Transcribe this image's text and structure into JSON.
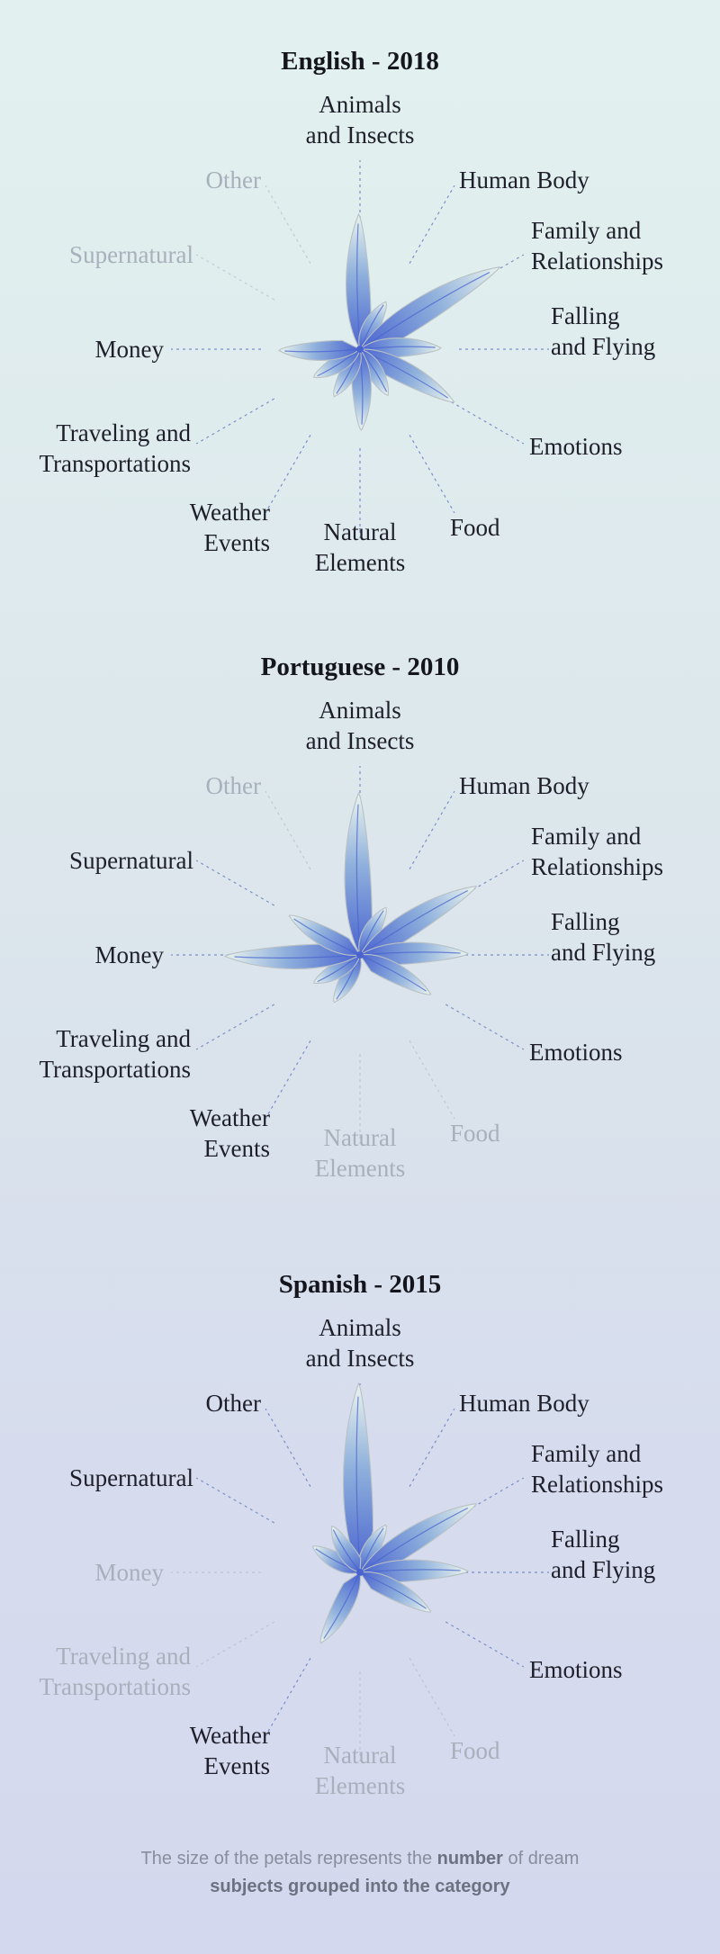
{
  "chart_data": [
    {
      "type": "radial-petal",
      "title": "English - 2018",
      "categories": [
        "Animals and Insects",
        "Human Body",
        "Family and Relationships",
        "Falling and Flying",
        "Emotions",
        "Food",
        "Natural Elements",
        "Weather Events",
        "Traveling and Transportations",
        "Money",
        "Supernatural",
        "Other"
      ],
      "values": [
        5,
        2,
        6,
        3,
        4,
        2,
        3,
        2,
        2,
        3,
        0,
        0
      ]
    },
    {
      "type": "radial-petal",
      "title": "Portuguese - 2010",
      "categories": [
        "Animals and Insects",
        "Human Body",
        "Family and Relationships",
        "Falling and Flying",
        "Emotions",
        "Food",
        "Natural Elements",
        "Weather Events",
        "Traveling and Transportations",
        "Money",
        "Supernatural",
        "Other"
      ],
      "values": [
        6,
        2,
        5,
        4,
        3,
        0,
        0,
        2,
        2,
        5,
        3,
        0
      ]
    },
    {
      "type": "radial-petal",
      "title": "Spanish - 2015",
      "categories": [
        "Animals and Insects",
        "Human Body",
        "Family and Relationships",
        "Falling and Flying",
        "Emotions",
        "Food",
        "Natural Elements",
        "Weather Events",
        "Traveling and Transportations",
        "Money",
        "Supernatural",
        "Other"
      ],
      "values": [
        7,
        2,
        5,
        4,
        3,
        0,
        0,
        3,
        0,
        0,
        2,
        2
      ]
    }
  ],
  "labels": [
    [
      "Animals",
      "and Insects"
    ],
    [
      "Human Body"
    ],
    [
      "Family and",
      "Relationships"
    ],
    [
      "Falling",
      "and Flying"
    ],
    [
      "Emotions"
    ],
    [
      "Food"
    ],
    [
      "Natural",
      "Elements"
    ],
    [
      "Weather",
      "Events"
    ],
    [
      "Traveling and",
      "Transportations"
    ],
    [
      "Money"
    ],
    [
      "Supernatural"
    ],
    [
      "Other"
    ]
  ],
  "colors": {
    "active_label": "#1e1f2a",
    "inactive_label": "#a8b0bc",
    "petal_core": "#4a64cf",
    "petal_tip": "#eaf4ee",
    "petal_edge": "#b9c0c4",
    "leader_line": "#6f86c4"
  },
  "footnote": {
    "part1": "The size of the petals represents the ",
    "bold1": "number",
    "part2": " of dream",
    "bold2": "subjects grouped into the category"
  }
}
